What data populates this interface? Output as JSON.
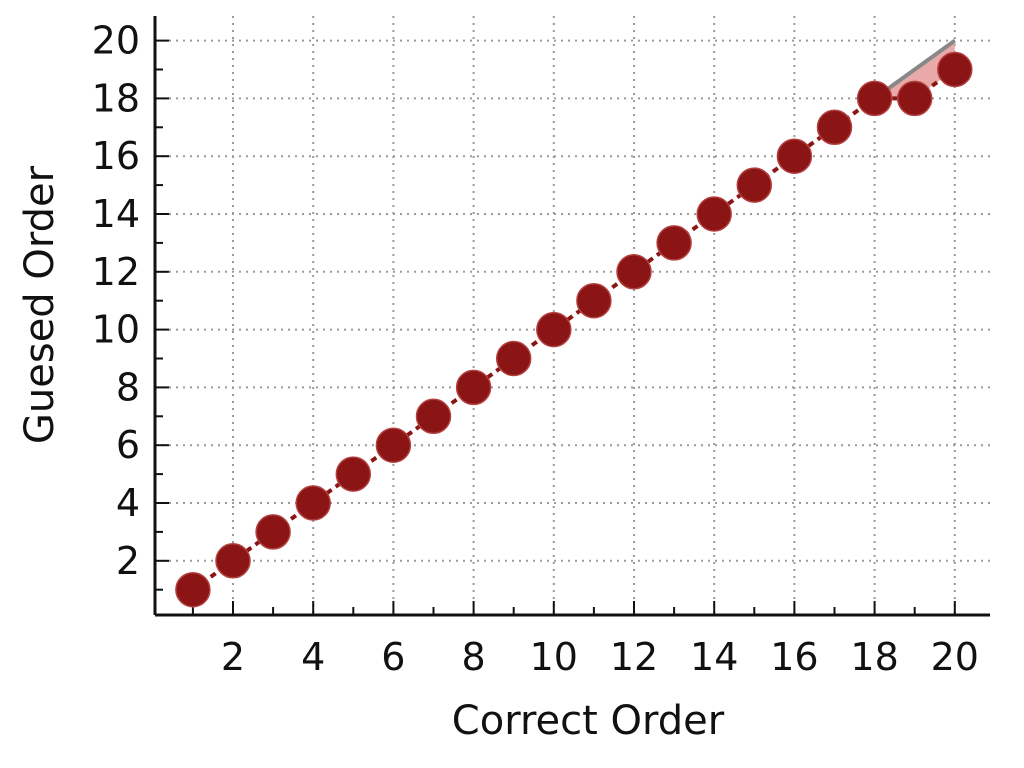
{
  "chart_data": {
    "type": "scatter",
    "title": "",
    "xlabel": "Correct Order",
    "ylabel": "Guesed Order",
    "xlim": [
      0,
      21
    ],
    "ylim": [
      0,
      20.8
    ],
    "grid": true,
    "xticks": [
      2,
      4,
      6,
      8,
      10,
      12,
      14,
      16,
      18,
      20
    ],
    "yticks": [
      2,
      4,
      6,
      8,
      10,
      12,
      14,
      16,
      18,
      20
    ],
    "series": [
      {
        "color": "#8b1414",
        "x": [
          1,
          2,
          3,
          4,
          5,
          6,
          7,
          8,
          9,
          10,
          11,
          12,
          13,
          14,
          15,
          16,
          17,
          18,
          19,
          20
        ],
        "y": [
          1,
          2,
          3,
          4,
          5,
          6,
          7,
          8,
          9,
          10,
          11,
          12,
          13,
          14,
          15,
          16,
          17,
          18,
          18,
          19
        ]
      }
    ],
    "reference_line": {
      "color": "#888888",
      "x": [
        18,
        19,
        20
      ],
      "y": [
        18,
        19,
        20
      ]
    },
    "error_fill_color": "#e8a0a0"
  }
}
